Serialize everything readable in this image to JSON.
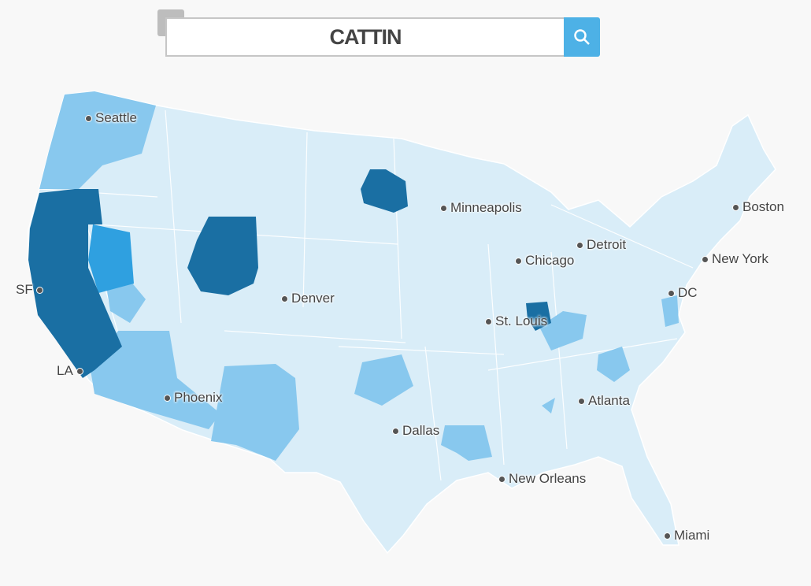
{
  "search": {
    "value": "CATTIN",
    "clear_icon": "close-icon",
    "submit_icon": "search-icon"
  },
  "colors": {
    "background": "#f8f8f8",
    "lowest": "#d9edf8",
    "low": "#88c8ee",
    "medium": "#2fa0e0",
    "high": "#1a6fa3",
    "search_button": "#4db1e6"
  },
  "cities": {
    "seattle": "Seattle",
    "sf": "SF",
    "la": "LA",
    "phoenix": "Phoenix",
    "denver": "Denver",
    "minneapolis": "Minneapolis",
    "chicago": "Chicago",
    "detroit": "Detroit",
    "st_louis": "St. Louis",
    "dallas": "Dallas",
    "new_orleans": "New Orleans",
    "atlanta": "Atlanta",
    "miami": "Miami",
    "dc": "DC",
    "new_york": "New York",
    "boston": "Boston"
  }
}
